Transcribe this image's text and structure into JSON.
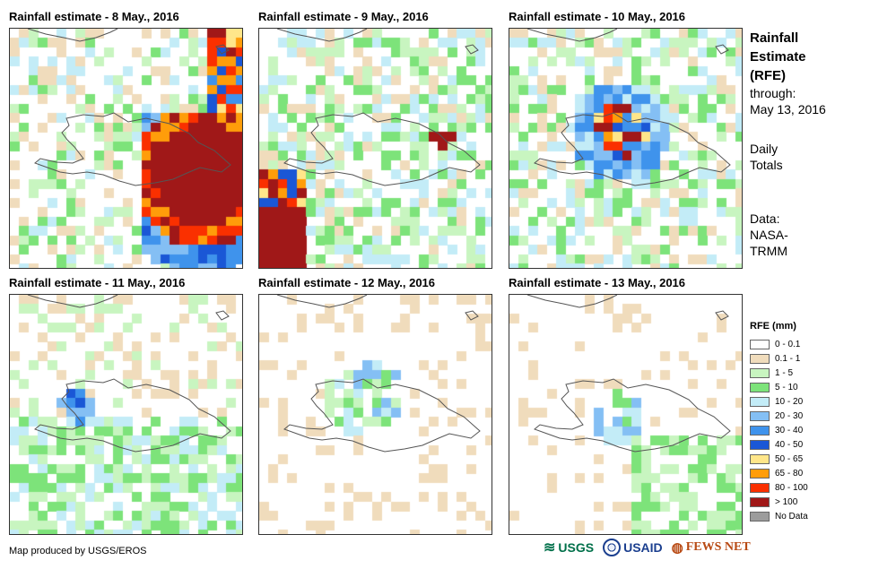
{
  "panels": [
    {
      "title": "Rainfall estimate - 8 May., 2016",
      "day": 8
    },
    {
      "title": "Rainfall estimate - 9 May., 2016",
      "day": 9
    },
    {
      "title": "Rainfall estimate - 10 May., 2016",
      "day": 10
    },
    {
      "title": "Rainfall estimate - 11 May., 2016",
      "day": 11
    },
    {
      "title": "Rainfall estimate - 12 May., 2016",
      "day": 12
    },
    {
      "title": "Rainfall estimate - 13 May., 2016",
      "day": 13
    }
  ],
  "sidebar": {
    "heading": [
      "Rainfall",
      "Estimate",
      "(RFE)"
    ],
    "through_label": "through:",
    "through_date": "May 13, 2016",
    "totals": [
      "Daily",
      "Totals"
    ],
    "data_source": [
      "Data:",
      "NASA-",
      "TRMM"
    ]
  },
  "legend": {
    "title": "RFE (mm)",
    "items": [
      {
        "label": "0 - 0.1",
        "color": "#ffffff"
      },
      {
        "label": "0.1 - 1",
        "color": "#f0dcbc"
      },
      {
        "label": "1 - 5",
        "color": "#c8f5c0"
      },
      {
        "label": "5 - 10",
        "color": "#7de37a"
      },
      {
        "label": "10 - 20",
        "color": "#c3ecf7"
      },
      {
        "label": "20 - 30",
        "color": "#84bff4"
      },
      {
        "label": "30 - 40",
        "color": "#3f93ec"
      },
      {
        "label": "40 - 50",
        "color": "#1a57d6"
      },
      {
        "label": "50 - 65",
        "color": "#ffe68a"
      },
      {
        "label": "65 - 80",
        "color": "#ff9d0a"
      },
      {
        "label": "80 - 100",
        "color": "#fa3000"
      },
      {
        "label": "> 100",
        "color": "#a01818"
      },
      {
        "label": "No Data",
        "color": "#9c9c9c"
      }
    ]
  },
  "footer": {
    "credit": "Map produced by USGS/EROS",
    "logos": [
      "USGS",
      "USAID",
      "FEWS NET"
    ]
  },
  "colors": {
    "outline": "#555555"
  }
}
